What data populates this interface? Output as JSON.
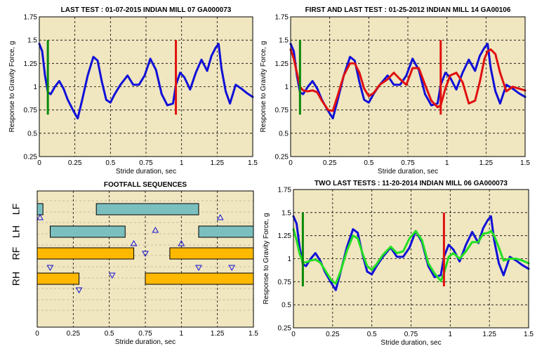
{
  "colors": {
    "plot_bg": "#F0E6C0",
    "grid": "#000000",
    "blue": "#1010D8",
    "red": "#E01010",
    "green_marker": "#0A8A0A",
    "bright_green": "#22E022",
    "teal_bar": "#7BBFBF",
    "orange_bar": "#FFB800",
    "triangle": "#1010D8"
  },
  "chart_data": [
    {
      "id": "tl",
      "type": "line",
      "title": "LAST TEST : 01-07-2015 INDIAN MILL 07 GA000073",
      "xlabel": "Stride duration, sec",
      "ylabel": "Response to Gravity Force, g",
      "xlim": [
        0,
        1.5
      ],
      "ylim": [
        0.25,
        1.75
      ],
      "xticks": [
        "0",
        "0.25",
        "0.5",
        "0.75",
        "1",
        "1.25",
        "1.5"
      ],
      "yticks": [
        "0.25",
        "0.5",
        "0.75",
        "1",
        "1.25",
        "1.5",
        "1.75"
      ],
      "grid": true,
      "x": [
        0,
        0.02,
        0.04,
        0.06,
        0.08,
        0.11,
        0.14,
        0.17,
        0.2,
        0.24,
        0.27,
        0.3,
        0.34,
        0.38,
        0.41,
        0.44,
        0.47,
        0.5,
        0.53,
        0.57,
        0.62,
        0.66,
        0.7,
        0.74,
        0.78,
        0.82,
        0.86,
        0.9,
        0.94,
        0.96,
        0.99,
        1.02,
        1.06,
        1.1,
        1.14,
        1.18,
        1.21,
        1.24,
        1.26,
        1.28,
        1.31,
        1.34,
        1.38,
        1.42,
        1.46,
        1.5
      ],
      "series": [
        {
          "color_key": "blue",
          "values": [
            1.46,
            1.38,
            1.12,
            0.94,
            0.92,
            1.0,
            1.06,
            0.98,
            0.86,
            0.74,
            0.66,
            0.85,
            1.12,
            1.32,
            1.28,
            1.05,
            0.86,
            0.83,
            0.92,
            1.02,
            1.12,
            1.02,
            1.02,
            1.12,
            1.3,
            1.18,
            0.92,
            0.8,
            0.82,
            1.02,
            1.15,
            1.1,
            0.97,
            1.15,
            1.29,
            1.17,
            1.33,
            1.42,
            1.46,
            1.2,
            0.95,
            0.82,
            1.02,
            0.98,
            0.93,
            0.89
          ]
        }
      ],
      "markers": [
        {
          "x": 0.06,
          "y": [
            0.7,
            1.5
          ],
          "color_key": "green_marker"
        },
        {
          "x": 0.96,
          "y": [
            0.7,
            1.5
          ],
          "color_key": "red"
        }
      ]
    },
    {
      "id": "tr",
      "type": "line",
      "title": "FIRST AND LAST TEST : 01-25-2012 INDIAN MILL 14 GA00106",
      "xlabel": "Stride duration, sec",
      "ylabel": "Response to Gravity Force, g",
      "xlim": [
        0,
        1.5
      ],
      "ylim": [
        0.25,
        1.75
      ],
      "xticks": [
        "0",
        "0.25",
        "0.5",
        "0.75",
        "1",
        "1.25",
        "1.5"
      ],
      "yticks": [
        "0.25",
        "0.5",
        "0.75",
        "1",
        "1.25",
        "1.5",
        "1.75"
      ],
      "grid": true,
      "x": [
        0,
        0.02,
        0.04,
        0.06,
        0.08,
        0.11,
        0.14,
        0.17,
        0.2,
        0.24,
        0.27,
        0.3,
        0.34,
        0.38,
        0.41,
        0.44,
        0.47,
        0.5,
        0.53,
        0.57,
        0.62,
        0.66,
        0.7,
        0.74,
        0.78,
        0.82,
        0.86,
        0.9,
        0.94,
        0.96,
        0.99,
        1.02,
        1.06,
        1.1,
        1.14,
        1.18,
        1.21,
        1.24,
        1.26,
        1.28,
        1.31,
        1.34,
        1.38,
        1.42,
        1.46,
        1.5
      ],
      "series": [
        {
          "color_key": "blue",
          "values": [
            1.46,
            1.38,
            1.12,
            0.94,
            0.92,
            1.0,
            1.06,
            0.98,
            0.86,
            0.74,
            0.66,
            0.85,
            1.12,
            1.32,
            1.28,
            1.05,
            0.86,
            0.83,
            0.92,
            1.02,
            1.12,
            1.02,
            1.02,
            1.12,
            1.3,
            1.18,
            0.92,
            0.8,
            0.82,
            1.02,
            1.15,
            1.1,
            0.97,
            1.15,
            1.29,
            1.17,
            1.33,
            1.42,
            1.46,
            1.2,
            0.95,
            0.82,
            1.02,
            0.98,
            0.93,
            0.89
          ]
        },
        {
          "color_key": "red",
          "values": [
            1.4,
            1.3,
            1.15,
            1.0,
            0.96,
            0.95,
            0.96,
            0.94,
            0.85,
            0.75,
            0.74,
            0.9,
            1.12,
            1.25,
            1.25,
            1.15,
            0.98,
            0.9,
            0.93,
            1.02,
            1.08,
            1.15,
            1.08,
            1.02,
            1.2,
            1.2,
            1.02,
            0.85,
            0.78,
            0.8,
            0.98,
            1.12,
            1.15,
            1.05,
            0.82,
            0.85,
            1.05,
            1.3,
            1.38,
            1.4,
            1.35,
            1.15,
            0.95,
            1.0,
            0.98,
            0.96
          ]
        }
      ],
      "markers": [
        {
          "x": 0.06,
          "y": [
            0.7,
            1.5
          ],
          "color_key": "green_marker"
        },
        {
          "x": 0.96,
          "y": [
            0.7,
            1.5
          ],
          "color_key": "red"
        }
      ]
    },
    {
      "id": "bl",
      "type": "footfall",
      "title": "FOOTFALL SEQUENCES",
      "xlabel": "Stride duration, sec",
      "xlim": [
        0,
        1.5
      ],
      "xticks": [
        "0",
        "0.25",
        "0.5",
        "0.75",
        "1",
        "1.25",
        "1.5"
      ],
      "rows": [
        "LF",
        "LH",
        "RF",
        "RH"
      ],
      "grid": true,
      "bars": [
        {
          "row": "LF",
          "start": 0.0,
          "end": 0.04,
          "color_key": "teal_bar"
        },
        {
          "row": "LF",
          "start": 0.41,
          "end": 1.12,
          "color_key": "teal_bar"
        },
        {
          "row": "LH",
          "start": 0.09,
          "end": 0.61,
          "color_key": "teal_bar"
        },
        {
          "row": "LH",
          "start": 1.12,
          "end": 1.5,
          "color_key": "teal_bar"
        },
        {
          "row": "RF",
          "start": 0.0,
          "end": 0.67,
          "color_key": "orange_bar"
        },
        {
          "row": "RF",
          "start": 0.92,
          "end": 1.5,
          "color_key": "orange_bar"
        },
        {
          "row": "RH",
          "start": 0.0,
          "end": 0.29,
          "color_key": "orange_bar"
        },
        {
          "row": "RH",
          "start": 0.75,
          "end": 1.5,
          "color_key": "orange_bar"
        }
      ],
      "triangles": [
        {
          "x": 0.02,
          "row": "LF",
          "dir": "up"
        },
        {
          "x": 1.27,
          "row": "LF",
          "dir": "up"
        },
        {
          "x": 0.82,
          "row": "LH",
          "dir": "up"
        },
        {
          "x": 0.67,
          "row": "LH-RF",
          "dir": "up"
        },
        {
          "x": 1.0,
          "row": "LH-RF",
          "dir": "up"
        },
        {
          "x": 0.75,
          "row": "RF",
          "dir": "down"
        },
        {
          "x": 0.09,
          "row": "RF-RH",
          "dir": "down"
        },
        {
          "x": 1.12,
          "row": "RF-RH",
          "dir": "down"
        },
        {
          "x": 1.35,
          "row": "RF-RH",
          "dir": "down"
        },
        {
          "x": 0.52,
          "row": "RH",
          "dir": "down"
        },
        {
          "x": 0.29,
          "row": "RH-below",
          "dir": "down"
        }
      ]
    },
    {
      "id": "br",
      "type": "line",
      "title": "TWO LAST TESTS : 11-20-2014 INDIAN MILL 06 GA000073",
      "xlabel": "Stride duration, sec",
      "ylabel": "Response to Gravity Force, g",
      "xlim": [
        0,
        1.5
      ],
      "ylim": [
        0.25,
        1.75
      ],
      "xticks": [
        "0",
        "0.25",
        "0.5",
        "0.75",
        "1",
        "1.25",
        "1.5"
      ],
      "yticks": [
        "0.25",
        "0.5",
        "0.75",
        "1",
        "1.25",
        "1.5",
        "1.75"
      ],
      "grid": true,
      "x": [
        0,
        0.02,
        0.04,
        0.06,
        0.08,
        0.11,
        0.14,
        0.17,
        0.2,
        0.24,
        0.27,
        0.3,
        0.34,
        0.38,
        0.41,
        0.44,
        0.47,
        0.5,
        0.53,
        0.57,
        0.62,
        0.66,
        0.7,
        0.74,
        0.78,
        0.82,
        0.86,
        0.9,
        0.94,
        0.96,
        0.99,
        1.02,
        1.06,
        1.1,
        1.14,
        1.18,
        1.21,
        1.24,
        1.26,
        1.28,
        1.31,
        1.34,
        1.38,
        1.42,
        1.46,
        1.5
      ],
      "series": [
        {
          "color_key": "blue",
          "values": [
            1.46,
            1.38,
            1.12,
            0.94,
            0.92,
            1.0,
            1.06,
            0.98,
            0.86,
            0.74,
            0.66,
            0.85,
            1.12,
            1.32,
            1.28,
            1.05,
            0.86,
            0.83,
            0.92,
            1.02,
            1.12,
            1.02,
            1.02,
            1.12,
            1.3,
            1.18,
            0.92,
            0.8,
            0.82,
            1.02,
            1.15,
            1.1,
            0.97,
            1.15,
            1.29,
            1.17,
            1.33,
            1.42,
            1.46,
            1.2,
            0.95,
            0.82,
            1.02,
            0.98,
            0.93,
            0.89
          ]
        },
        {
          "color_key": "bright_green",
          "values": [
            1.32,
            1.2,
            1.05,
            0.96,
            0.96,
            0.98,
            0.99,
            0.96,
            0.88,
            0.77,
            0.73,
            0.86,
            1.08,
            1.25,
            1.22,
            1.06,
            0.92,
            0.88,
            0.94,
            1.04,
            1.13,
            1.06,
            1.08,
            1.22,
            1.3,
            1.2,
            0.95,
            0.84,
            0.76,
            0.84,
            1.02,
            1.06,
            1.0,
            1.08,
            1.18,
            1.18,
            1.27,
            1.28,
            1.3,
            1.25,
            1.12,
            0.98,
            1.0,
            1.0,
            0.98,
            0.95
          ]
        }
      ],
      "markers": [
        {
          "x": 0.06,
          "y": [
            0.7,
            1.5
          ],
          "color_key": "green_marker"
        },
        {
          "x": 0.96,
          "y": [
            0.7,
            1.5
          ],
          "color_key": "red"
        }
      ]
    }
  ]
}
